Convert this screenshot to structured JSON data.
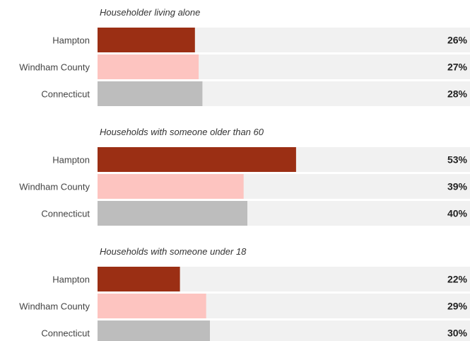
{
  "chart_data": {
    "type": "bar",
    "orientation": "horizontal",
    "xlim": [
      0,
      100
    ],
    "value_suffix": "%",
    "colors": {
      "Hampton": "#9b2f14",
      "Windham County": "#fdc4c0",
      "Connecticut": "#bdbdbd",
      "track": "#f1f1f1"
    },
    "groups": [
      {
        "title": "Householder living alone",
        "categories": [
          "Hampton",
          "Windham County",
          "Connecticut"
        ],
        "values": [
          26,
          27,
          28
        ],
        "labels": [
          "26%",
          "27%",
          "28%"
        ]
      },
      {
        "title": "Households with someone older than 60",
        "categories": [
          "Hampton",
          "Windham County",
          "Connecticut"
        ],
        "values": [
          53,
          39,
          40
        ],
        "labels": [
          "53%",
          "39%",
          "40%"
        ]
      },
      {
        "title": "Households with someone under 18",
        "categories": [
          "Hampton",
          "Windham County",
          "Connecticut"
        ],
        "values": [
          22,
          29,
          30
        ],
        "labels": [
          "22%",
          "29%",
          "30%"
        ]
      }
    ]
  }
}
